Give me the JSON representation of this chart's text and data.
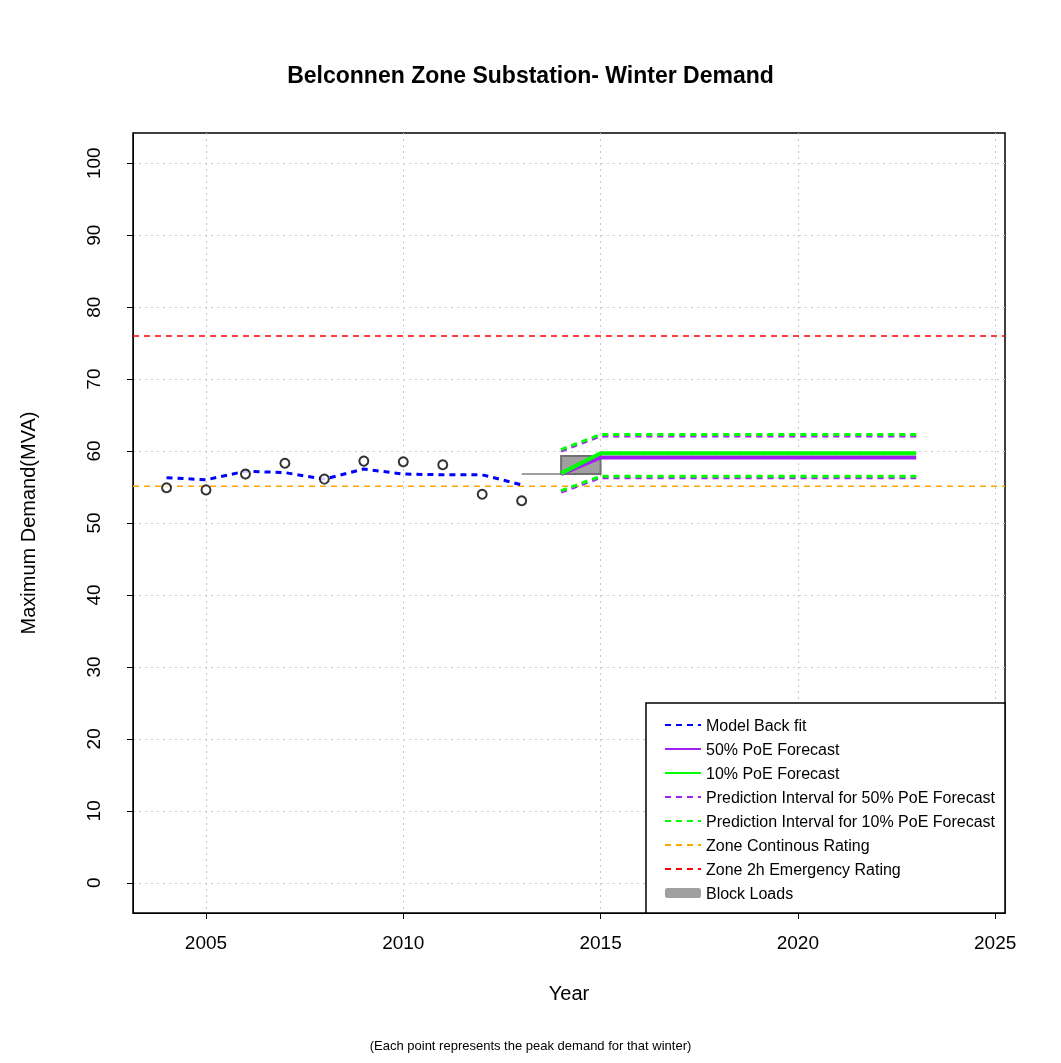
{
  "chart_data": {
    "type": "line",
    "title": "Belconnen Zone Substation- Winter Demand",
    "xlabel": "Year",
    "ylabel": "Maximum Demand(MVA)",
    "annotations": [
      "(Each point represents the peak demand for that winter)"
    ],
    "xlim": [
      2003.15,
      2025.25
    ],
    "xticks": [
      2005,
      2010,
      2015,
      2020,
      2025
    ],
    "ylim": [
      -4.2,
      104.2
    ],
    "yticks": [
      0,
      10,
      20,
      30,
      40,
      50,
      60,
      70,
      80,
      90,
      100
    ],
    "grid": true,
    "legend": "bottom right",
    "series": [
      {
        "name": "Model Back fit",
        "color": "#0000ff",
        "line_style": "dashed",
        "marker": "none",
        "x": [
          2004,
          2005,
          2006,
          2007,
          2008,
          2009,
          2010,
          2011,
          2012,
          2013
        ],
        "values": [
          56.3,
          56.0,
          57.2,
          57.0,
          56.1,
          57.5,
          56.8,
          56.7,
          56.7,
          55.3
        ]
      },
      {
        "type": "scatter",
        "color": "#000000",
        "marker": "circle",
        "x": [
          2004,
          2005,
          2006,
          2007,
          2008,
          2009,
          2010,
          2011,
          2012,
          2013
        ],
        "values": [
          54.9,
          54.6,
          56.8,
          58.3,
          56.1,
          58.6,
          58.5,
          58.1,
          54.0,
          53.1
        ]
      },
      {
        "type": "line",
        "color": "#808080",
        "line_style": "solid",
        "marker": "none",
        "x": [
          2013,
          2014
        ],
        "values": [
          56.8,
          56.8
        ]
      },
      {
        "name": "50% PoE Forecast",
        "type": "line",
        "color": "#a020f0",
        "line_style": "solid",
        "marker": "none",
        "x": [
          2014,
          2015,
          2023
        ],
        "values": [
          56.8,
          59.1,
          59.1
        ]
      },
      {
        "name": "10% PoE Forecast",
        "type": "line",
        "color": "#00ff00",
        "line_style": "solid",
        "marker": "none",
        "x": [
          2014,
          2015,
          2023
        ],
        "values": [
          56.9,
          59.7,
          59.7
        ]
      },
      {
        "name": "Prediction Interval for 50% PoE Forecast",
        "type": "line",
        "color": "#a020f0",
        "line_style": "dashed",
        "marker": "none",
        "x": [
          2014,
          2015,
          2023
        ],
        "values": [
          60.0,
          62.1,
          62.1
        ]
      },
      {
        "type": "line",
        "color": "#a020f0",
        "line_style": "dashed",
        "marker": "none",
        "x": [
          2014,
          2015,
          2023
        ],
        "values": [
          54.3,
          56.3,
          56.3
        ]
      },
      {
        "name": "Prediction Interval for 10% PoE Forecast",
        "type": "line",
        "color": "#00ff00",
        "line_style": "dashed",
        "marker": "none",
        "x": [
          2014,
          2015,
          2023
        ],
        "values": [
          60.2,
          62.3,
          62.3
        ]
      },
      {
        "type": "line",
        "color": "#00ff00",
        "line_style": "dashed",
        "marker": "none",
        "x": [
          2014,
          2015,
          2023
        ],
        "values": [
          54.5,
          56.5,
          56.5
        ]
      },
      {
        "name": "Block Loads",
        "type": "bar",
        "color": "#a0a0a0",
        "x": [
          2014.5
        ],
        "base": [
          56.8
        ],
        "values": [
          2.5
        ]
      }
    ],
    "ref_lines": [
      {
        "axis": "y",
        "value": 55.1,
        "label": "Zone Continous Rating",
        "color": "#ffa500",
        "line_style": "dashed"
      },
      {
        "axis": "y",
        "value": 76.0,
        "label": "Zone 2h Emergency Rating",
        "color": "#ff0000",
        "line_style": "dashed"
      }
    ]
  }
}
